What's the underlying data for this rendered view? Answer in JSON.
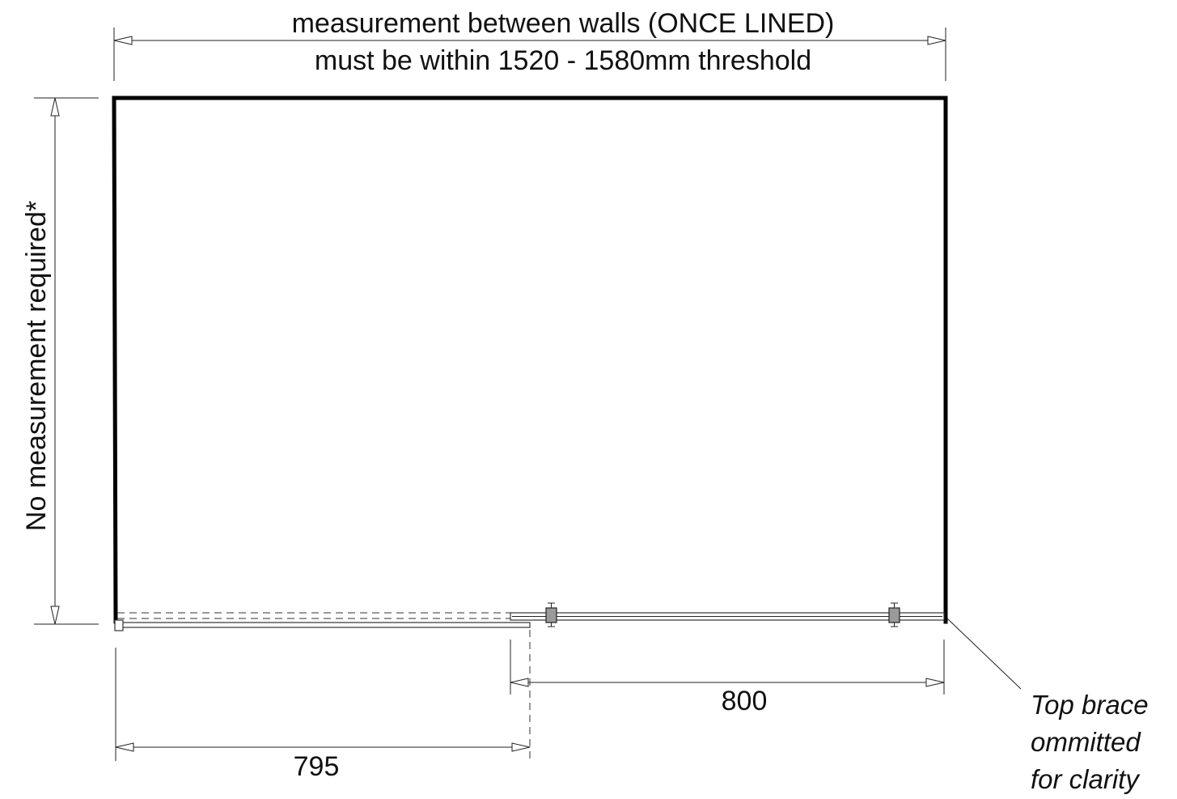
{
  "diagram": {
    "top_dimension": {
      "line1": "measurement between walls (ONCE LINED)",
      "line2": "must be within 1520 - 1580mm threshold"
    },
    "side_dimension": {
      "label": "No measurement required*"
    },
    "bottom_dimensions": [
      {
        "value": "795"
      },
      {
        "value": "800"
      }
    ],
    "note": {
      "lines": [
        "Top brace",
        "ommitted",
        "for clarity"
      ]
    },
    "colors": {
      "line": "#000000",
      "roller_fill": "#9a9a9a",
      "background": "#ffffff"
    }
  }
}
